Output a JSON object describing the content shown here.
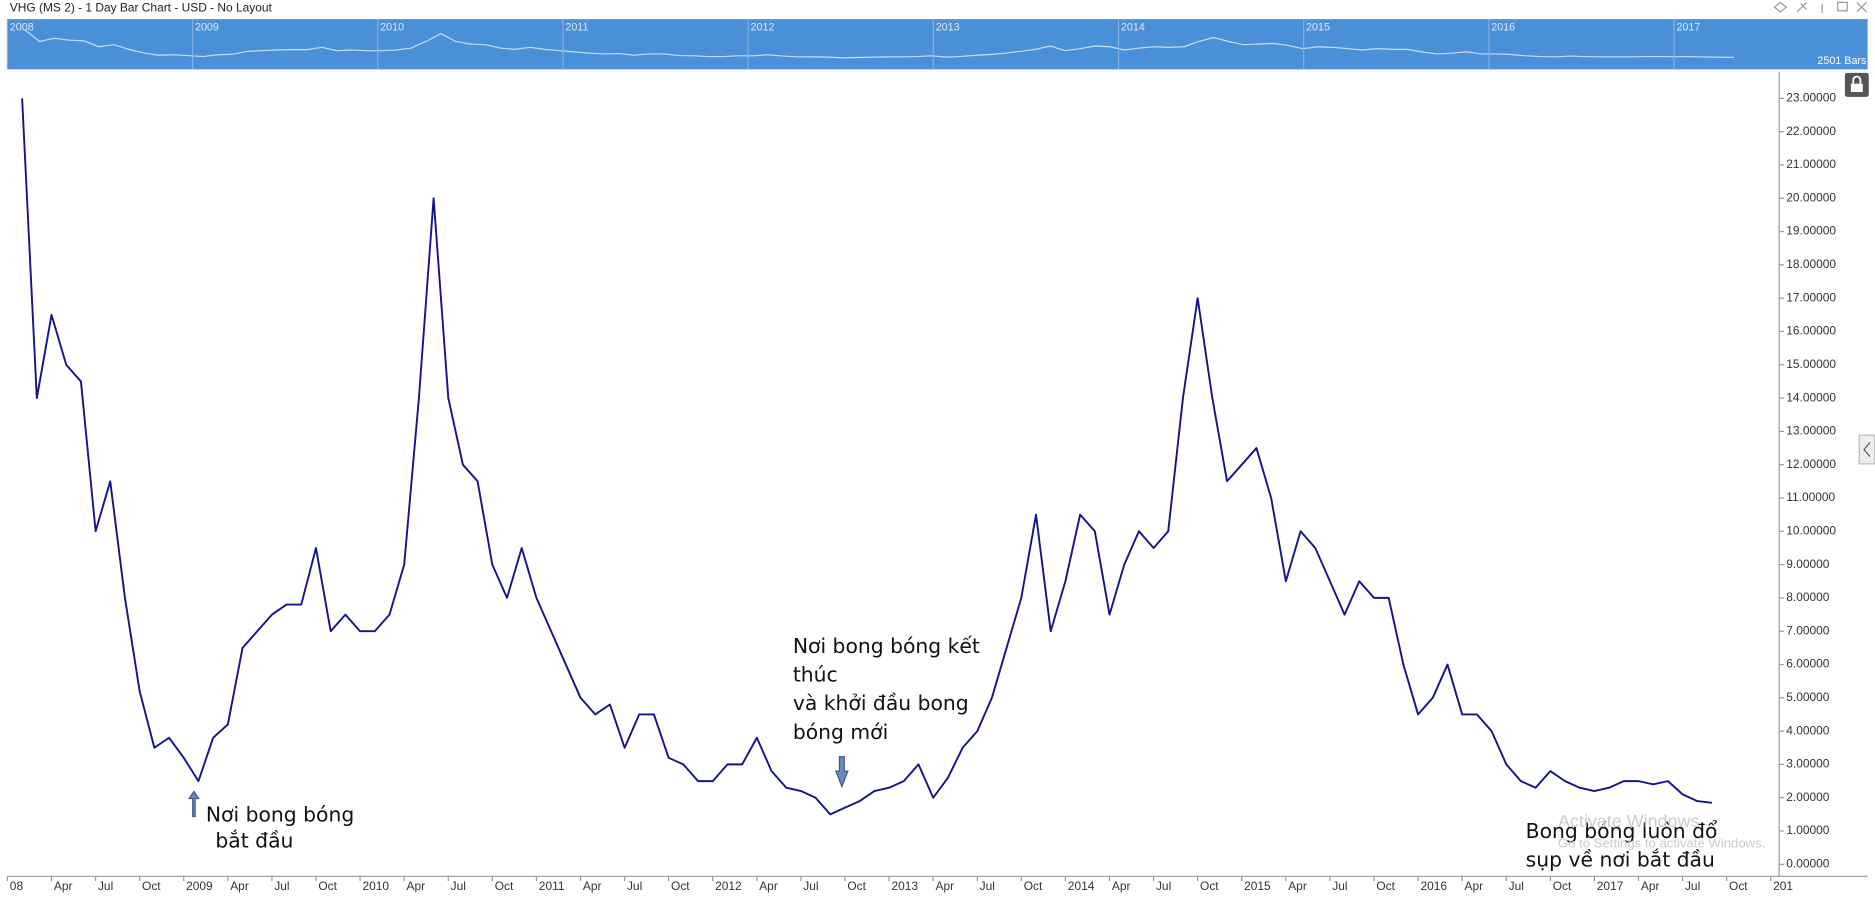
{
  "window_title": "VHG (MS 2) - 1 Day Bar Chart - USD - No Layout",
  "navigator": {
    "labels": [
      "2008",
      "2009",
      "2010",
      "2011",
      "2012",
      "2013",
      "2014",
      "2015",
      "2016",
      "2017"
    ],
    "bars_label": "2501 Bars"
  },
  "watermark": [
    "Activate Windows",
    "Go to Settings to activate Windows."
  ],
  "chart_data": {
    "type": "line",
    "annotations": [
      [
        "Nơi bong bóng",
        "bắt đầu"
      ],
      [
        "Nơi bong bóng kết",
        "thúc",
        "và khởi đầu bong",
        "bóng mới"
      ],
      [
        "Bong bóng luôn đổ",
        "sụp về nơi bắt đầu"
      ]
    ],
    "x": [
      "2008-02",
      "2008-03",
      "2008-04",
      "2008-05",
      "2008-06",
      "2008-07",
      "2008-08",
      "2008-09",
      "2008-10",
      "2008-11",
      "2008-12",
      "2009-01",
      "2009-02",
      "2009-03",
      "2009-04",
      "2009-05",
      "2009-06",
      "2009-07",
      "2009-08",
      "2009-09",
      "2009-10",
      "2009-11",
      "2009-12",
      "2010-01",
      "2010-02",
      "2010-03",
      "2010-04",
      "2010-05",
      "2010-06",
      "2010-07",
      "2010-08",
      "2010-09",
      "2010-10",
      "2010-11",
      "2010-12",
      "2011-01",
      "2011-02",
      "2011-03",
      "2011-04",
      "2011-05",
      "2011-06",
      "2011-07",
      "2011-08",
      "2011-09",
      "2011-10",
      "2011-11",
      "2011-12",
      "2012-01",
      "2012-02",
      "2012-03",
      "2012-04",
      "2012-05",
      "2012-06",
      "2012-07",
      "2012-08",
      "2012-09",
      "2012-10",
      "2012-11",
      "2012-12",
      "2013-01",
      "2013-02",
      "2013-03",
      "2013-04",
      "2013-05",
      "2013-06",
      "2013-07",
      "2013-08",
      "2013-09",
      "2013-10",
      "2013-11",
      "2013-12",
      "2014-01",
      "2014-02",
      "2014-03",
      "2014-04",
      "2014-05",
      "2014-06",
      "2014-07",
      "2014-08",
      "2014-09",
      "2014-10",
      "2014-11",
      "2014-12",
      "2015-01",
      "2015-02",
      "2015-03",
      "2015-04",
      "2015-05",
      "2015-06",
      "2015-07",
      "2015-08",
      "2015-09",
      "2015-10",
      "2015-11",
      "2015-12",
      "2016-01",
      "2016-02",
      "2016-03",
      "2016-04",
      "2016-05",
      "2016-06",
      "2016-07",
      "2016-08",
      "2016-09",
      "2016-10",
      "2016-11",
      "2016-12",
      "2017-01",
      "2017-02",
      "2017-03",
      "2017-04",
      "2017-05",
      "2017-06",
      "2017-07",
      "2017-08",
      "2017-09"
    ],
    "series": [
      {
        "name": "VHG",
        "color": "#14148c",
        "values": [
          23,
          14,
          16.5,
          15,
          14.5,
          10,
          11.5,
          8,
          5.2,
          3.5,
          3.8,
          3.2,
          2.5,
          3.8,
          4.2,
          6.5,
          7,
          7.5,
          7.8,
          7.8,
          9.5,
          7,
          7.5,
          7,
          7,
          7.5,
          9,
          14,
          20,
          14,
          12,
          11.5,
          9,
          8,
          9.5,
          8,
          7,
          6,
          5,
          4.5,
          4.8,
          3.5,
          4.5,
          4.5,
          3.2,
          3,
          2.5,
          2.5,
          3,
          3,
          3.8,
          2.8,
          2.3,
          2.2,
          2,
          1.5,
          1.7,
          1.9,
          2.2,
          2.3,
          2.5,
          3,
          2,
          2.6,
          3.5,
          4,
          5,
          6.5,
          8,
          10.5,
          7,
          8.5,
          10.5,
          10,
          7.5,
          9,
          10,
          9.5,
          10,
          14,
          17,
          14,
          11.5,
          12,
          12.5,
          11,
          8.5,
          10,
          9.5,
          8.5,
          7.5,
          8.5,
          8,
          8,
          6,
          4.5,
          5,
          6,
          4.5,
          4.5,
          4,
          3,
          2.5,
          2.3,
          2.8,
          2.5,
          2.3,
          2.2,
          2.3,
          2.5,
          2.5,
          2.4,
          2.5,
          2.1,
          1.9,
          1.85
        ]
      }
    ],
    "xlim": [
      "2008-01",
      "2018-01"
    ],
    "xticks": [
      {
        "value": "2008-01",
        "label": "08"
      },
      {
        "value": "2008-04",
        "label": "Apr"
      },
      {
        "value": "2008-07",
        "label": "Jul"
      },
      {
        "value": "2008-10",
        "label": "Oct"
      },
      {
        "value": "2009-01",
        "label": "2009"
      },
      {
        "value": "2009-04",
        "label": "Apr"
      },
      {
        "value": "2009-07",
        "label": "Jul"
      },
      {
        "value": "2009-10",
        "label": "Oct"
      },
      {
        "value": "2010-01",
        "label": "2010"
      },
      {
        "value": "2010-04",
        "label": "Apr"
      },
      {
        "value": "2010-07",
        "label": "Jul"
      },
      {
        "value": "2010-10",
        "label": "Oct"
      },
      {
        "value": "2011-01",
        "label": "2011"
      },
      {
        "value": "2011-04",
        "label": "Apr"
      },
      {
        "value": "2011-07",
        "label": "Jul"
      },
      {
        "value": "2011-10",
        "label": "Oct"
      },
      {
        "value": "2012-01",
        "label": "2012"
      },
      {
        "value": "2012-04",
        "label": "Apr"
      },
      {
        "value": "2012-07",
        "label": "Jul"
      },
      {
        "value": "2012-10",
        "label": "Oct"
      },
      {
        "value": "2013-01",
        "label": "2013"
      },
      {
        "value": "2013-04",
        "label": "Apr"
      },
      {
        "value": "2013-07",
        "label": "Jul"
      },
      {
        "value": "2013-10",
        "label": "Oct"
      },
      {
        "value": "2014-01",
        "label": "2014"
      },
      {
        "value": "2014-04",
        "label": "Apr"
      },
      {
        "value": "2014-07",
        "label": "Jul"
      },
      {
        "value": "2014-10",
        "label": "Oct"
      },
      {
        "value": "2015-01",
        "label": "2015"
      },
      {
        "value": "2015-04",
        "label": "Apr"
      },
      {
        "value": "2015-07",
        "label": "Jul"
      },
      {
        "value": "2015-10",
        "label": "Oct"
      },
      {
        "value": "2016-01",
        "label": "2016"
      },
      {
        "value": "2016-04",
        "label": "Apr"
      },
      {
        "value": "2016-07",
        "label": "Jul"
      },
      {
        "value": "2016-10",
        "label": "Oct"
      },
      {
        "value": "2017-01",
        "label": "2017"
      },
      {
        "value": "2017-04",
        "label": "Apr"
      },
      {
        "value": "2017-07",
        "label": "Jul"
      },
      {
        "value": "2017-10",
        "label": "Oct"
      },
      {
        "value": "2018-01",
        "label": "201"
      }
    ],
    "ylim": [
      0,
      23.8
    ],
    "yticks": [
      {
        "value": 0,
        "label": "0.00000"
      },
      {
        "value": 1,
        "label": "1.00000"
      },
      {
        "value": 2,
        "label": "2.00000"
      },
      {
        "value": 3,
        "label": "3.00000"
      },
      {
        "value": 4,
        "label": "4.00000"
      },
      {
        "value": 5,
        "label": "5.00000"
      },
      {
        "value": 6,
        "label": "6.00000"
      },
      {
        "value": 7,
        "label": "7.00000"
      },
      {
        "value": 8,
        "label": "8.00000"
      },
      {
        "value": 9,
        "label": "9.00000"
      },
      {
        "value": 10,
        "label": "10.00000"
      },
      {
        "value": 11,
        "label": "11.00000"
      },
      {
        "value": 12,
        "label": "12.00000"
      },
      {
        "value": 13,
        "label": "13.00000"
      },
      {
        "value": 14,
        "label": "14.00000"
      },
      {
        "value": 15,
        "label": "15.00000"
      },
      {
        "value": 16,
        "label": "16.00000"
      },
      {
        "value": 17,
        "label": "17.00000"
      },
      {
        "value": 18,
        "label": "18.00000"
      },
      {
        "value": 19,
        "label": "19.00000"
      },
      {
        "value": 20,
        "label": "20.00000"
      },
      {
        "value": 21,
        "label": "21.00000"
      },
      {
        "value": 22,
        "label": "22.00000"
      },
      {
        "value": 23,
        "label": "23.00000"
      }
    ],
    "grid": false
  }
}
